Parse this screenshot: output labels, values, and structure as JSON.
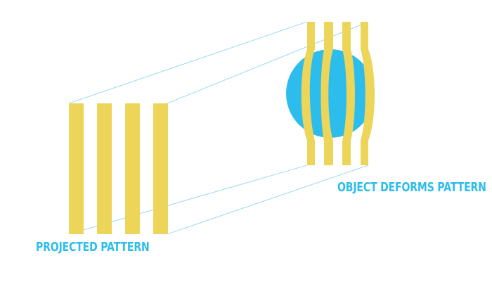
{
  "labels": {
    "projected": "PROJECTED PATTERN",
    "deforms": "OBJECT DEFORMS PATTERN"
  },
  "colors": {
    "stripe": "#EDD55A",
    "object": "#2DBDEC",
    "label": "#2DBDEC",
    "projection_line": "#8FD6EE",
    "background": "#FFFFFF"
  }
}
